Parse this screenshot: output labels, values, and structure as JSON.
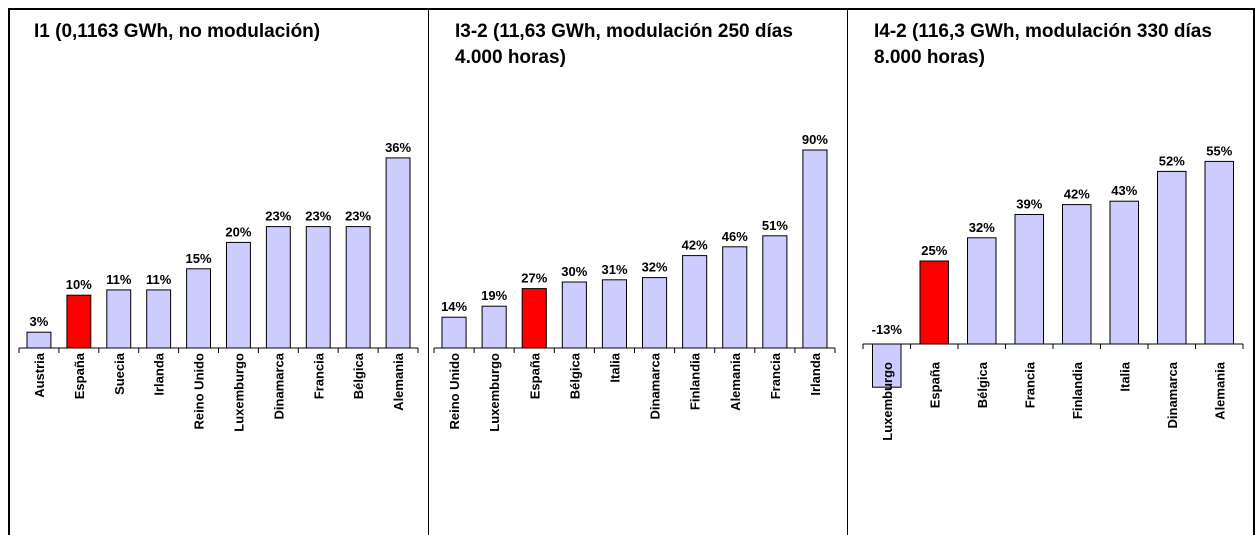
{
  "chart_data": [
    {
      "type": "bar",
      "title": "I1 (0,1163 GWh, no modulación)",
      "categories": [
        "Austria",
        "España",
        "Suecia",
        "Irlanda",
        "Reino Unido",
        "Luxemburgo",
        "Dinamarca",
        "Francia",
        "Bélgica",
        "Alemania"
      ],
      "values": [
        3,
        10,
        11,
        11,
        15,
        20,
        23,
        23,
        23,
        36
      ],
      "labels": [
        "3%",
        "10%",
        "11%",
        "11%",
        "15%",
        "20%",
        "23%",
        "23%",
        "23%",
        "36%"
      ],
      "highlight": "España",
      "colors": {
        "bar": "#ccccff",
        "highlight": "#ff0000"
      }
    },
    {
      "type": "bar",
      "title": "I3-2 (11,63 GWh, modulación 250 días 4.000 horas)",
      "categories": [
        "Reino Unido",
        "Luxemburgo",
        "España",
        "Bélgica",
        "Italia",
        "Dinamarca",
        "Finlandia",
        "Alemania",
        "Francia",
        "Irlanda"
      ],
      "values": [
        14,
        19,
        27,
        30,
        31,
        32,
        42,
        46,
        51,
        90
      ],
      "labels": [
        "14%",
        "19%",
        "27%",
        "30%",
        "31%",
        "32%",
        "42%",
        "46%",
        "51%",
        "90%"
      ],
      "highlight": "España",
      "colors": {
        "bar": "#ccccff",
        "highlight": "#ff0000"
      }
    },
    {
      "type": "bar",
      "title": "I4-2 (116,3 GWh, modulación 330 días 8.000 horas)",
      "categories": [
        "Luxemburgo",
        "España",
        "Bélgica",
        "Francia",
        "Finlandia",
        "Italia",
        "Dinamarca",
        "Alemania"
      ],
      "values": [
        -13,
        25,
        32,
        39,
        42,
        43,
        52,
        55
      ],
      "labels": [
        "-13%",
        "25%",
        "32%",
        "39%",
        "42%",
        "43%",
        "52%",
        "55%"
      ],
      "highlight": "España",
      "colors": {
        "bar": "#ccccff",
        "highlight": "#ff0000"
      }
    }
  ]
}
